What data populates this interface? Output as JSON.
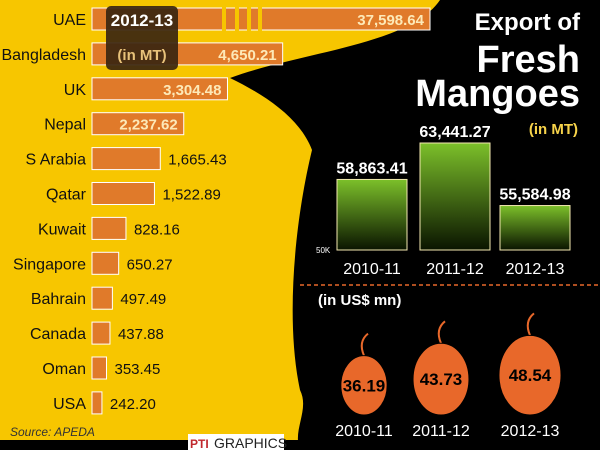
{
  "chart_data": [
    {
      "type": "bar",
      "orientation": "horizontal",
      "title": "2012-13",
      "subtitle": "(in MT)",
      "categories": [
        "UAE",
        "Bangladesh",
        "UK",
        "Nepal",
        "S Arabia",
        "Qatar",
        "Kuwait",
        "Singapore",
        "Bahrain",
        "Canada",
        "Oman",
        "USA"
      ],
      "values": [
        37598.64,
        4650.21,
        3304.48,
        2237.62,
        1665.43,
        1522.89,
        828.16,
        650.27,
        497.49,
        437.88,
        353.45,
        242.2
      ],
      "labels": [
        "37,598.64",
        "4,650.21",
        "3,304.48",
        "2,237.62",
        "1,665.43",
        "1,522.89",
        "828.16",
        "650.27",
        "497.49",
        "437.88",
        "353.45",
        "242.20"
      ],
      "axis_break": "UAE",
      "bar_color": "#e07a2a"
    },
    {
      "type": "bar",
      "title_lines": [
        "Export of",
        "Fresh",
        "Mangoes"
      ],
      "unit": "(in MT)",
      "categories": [
        "2010-11",
        "2011-12",
        "2012-13"
      ],
      "values": [
        58863.41,
        63441.27,
        55584.98
      ],
      "labels": [
        "58,863.41",
        "63,441.27",
        "55,584.98"
      ],
      "baseline_label": "50K",
      "ylim": [
        50000,
        66000
      ],
      "bar_color": "#6aa51e"
    },
    {
      "type": "pictogram",
      "unit": "(in US$ mn)",
      "categories": [
        "2010-11",
        "2011-12",
        "2012-13"
      ],
      "values": [
        36.19,
        43.73,
        48.54
      ],
      "labels": [
        "36.19",
        "43.73",
        "48.54"
      ],
      "mark": "mango",
      "mark_color": "#e8682a"
    }
  ],
  "footer": {
    "source": "Source: APEDA",
    "credit_logo": "PTI",
    "credit": "GRAPHICS"
  }
}
